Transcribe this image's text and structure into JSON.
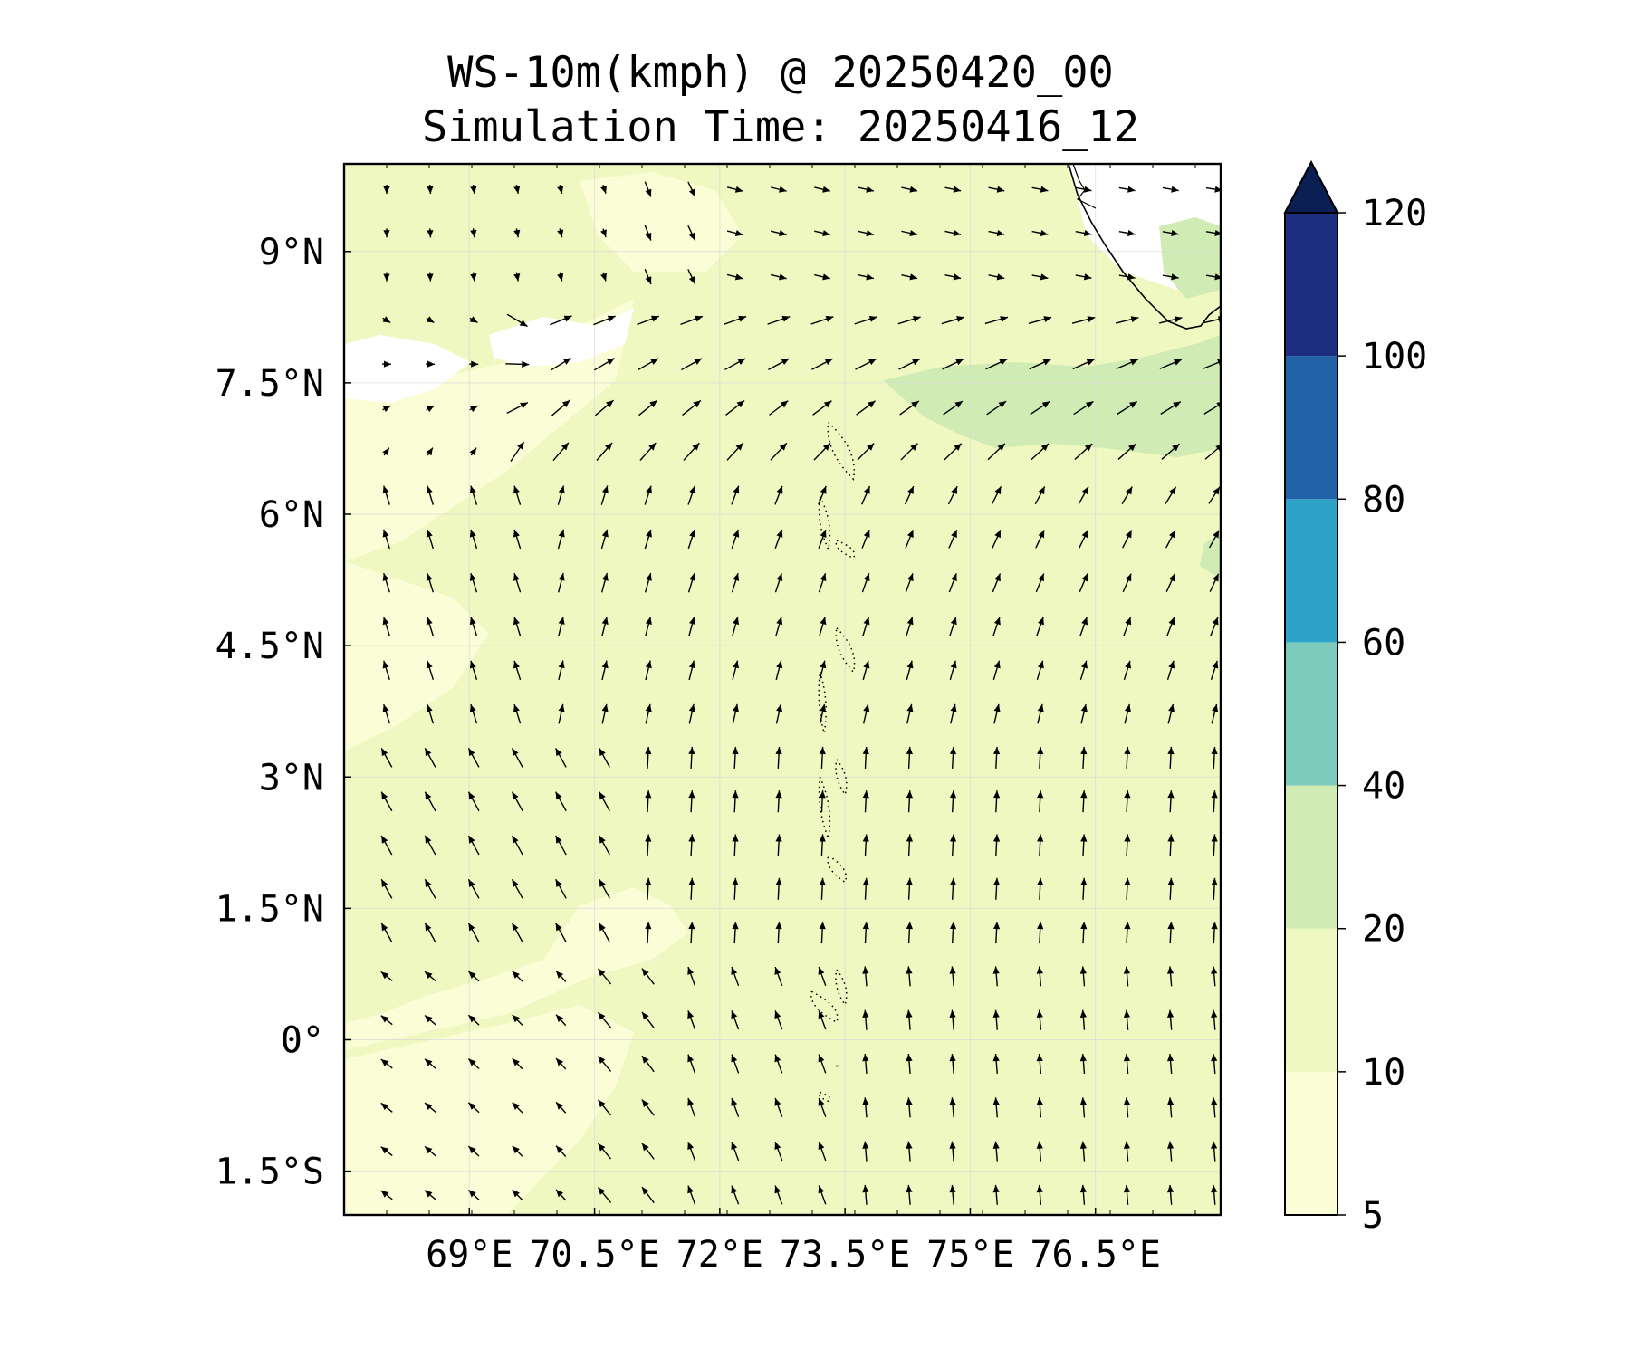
{
  "title": {
    "line1": "WS-10m(kmph) @ 20250420_00",
    "line2": "Simulation Time: 20250416_12"
  },
  "map": {
    "lon_range": [
      67.5,
      78.0
    ],
    "lat_range": [
      -2.0,
      10.0
    ],
    "x_ticks": [
      {
        "value": 69.0,
        "label": "69°E"
      },
      {
        "value": 70.5,
        "label": "70.5°E"
      },
      {
        "value": 72.0,
        "label": "72°E"
      },
      {
        "value": 73.5,
        "label": "73.5°E"
      },
      {
        "value": 75.0,
        "label": "75°E"
      },
      {
        "value": 76.5,
        "label": "76.5°E"
      }
    ],
    "y_ticks": [
      {
        "value": 9.0,
        "label": "9°N"
      },
      {
        "value": 7.5,
        "label": "7.5°N"
      },
      {
        "value": 6.0,
        "label": "6°N"
      },
      {
        "value": 4.5,
        "label": "4.5°N"
      },
      {
        "value": 3.0,
        "label": "3°N"
      },
      {
        "value": 1.5,
        "label": "1.5°N"
      },
      {
        "value": 0.0,
        "label": "0°"
      },
      {
        "value": -1.5,
        "label": "1.5°S"
      }
    ],
    "gridlines": true,
    "fill_colors": {
      "lt5": "#ffffff",
      "5-10": "#fbfdd6",
      "10-20": "#eef8c0",
      "20-40": "#d0ecb4"
    }
  },
  "colorbar": {
    "levels": [
      5,
      10,
      20,
      40,
      60,
      80,
      100,
      120
    ],
    "labels": [
      "5",
      "10",
      "20",
      "40",
      "60",
      "80",
      "100",
      "120"
    ],
    "colors": [
      "#fbfdd6",
      "#eef8c0",
      "#d0ecb4",
      "#7ccbbd",
      "#2fa3c7",
      "#2262a9",
      "#1d2d7f"
    ],
    "extend_color": "#0c1f55"
  }
}
